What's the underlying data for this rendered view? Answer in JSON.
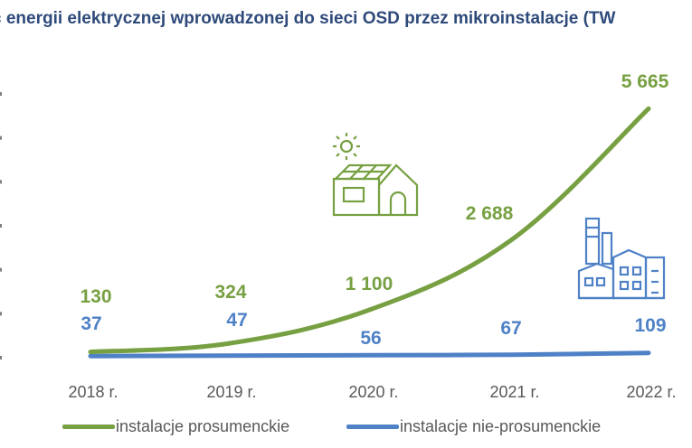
{
  "title": "ć energii elektrycznej wprowadzonej do sieci OSD przez mikroinstalacje (TW",
  "chart_data": {
    "type": "line",
    "title": "ć energii elektrycznej wprowadzonej do sieci OSD przez mikroinstalacje (TW",
    "categories": [
      "2018 r.",
      "2019 r.",
      "2020 r.",
      "2021 r.",
      "2022 r."
    ],
    "series": [
      {
        "name": "instalacje prosumenckie",
        "values": [
          130,
          324,
          1100,
          2688,
          5665
        ],
        "labels": [
          "130",
          "324",
          "1 100",
          "2 688",
          "5 665"
        ],
        "color": "#77a042"
      },
      {
        "name": "instalacje nie-prosumenckie",
        "values": [
          37,
          47,
          56,
          67,
          109
        ],
        "labels": [
          "37",
          "47",
          "56",
          "67",
          "109"
        ],
        "color": "#4f81c7"
      }
    ],
    "ylim": [
      0,
      6000
    ],
    "grid": false,
    "legend_position": "bottom"
  },
  "icons": {
    "house": "solar-house-icon",
    "factory": "factory-icon"
  },
  "colors": {
    "title": "#2e4a7a",
    "axis_text": "#595959",
    "green": "#77a042",
    "blue": "#4f81c7"
  }
}
